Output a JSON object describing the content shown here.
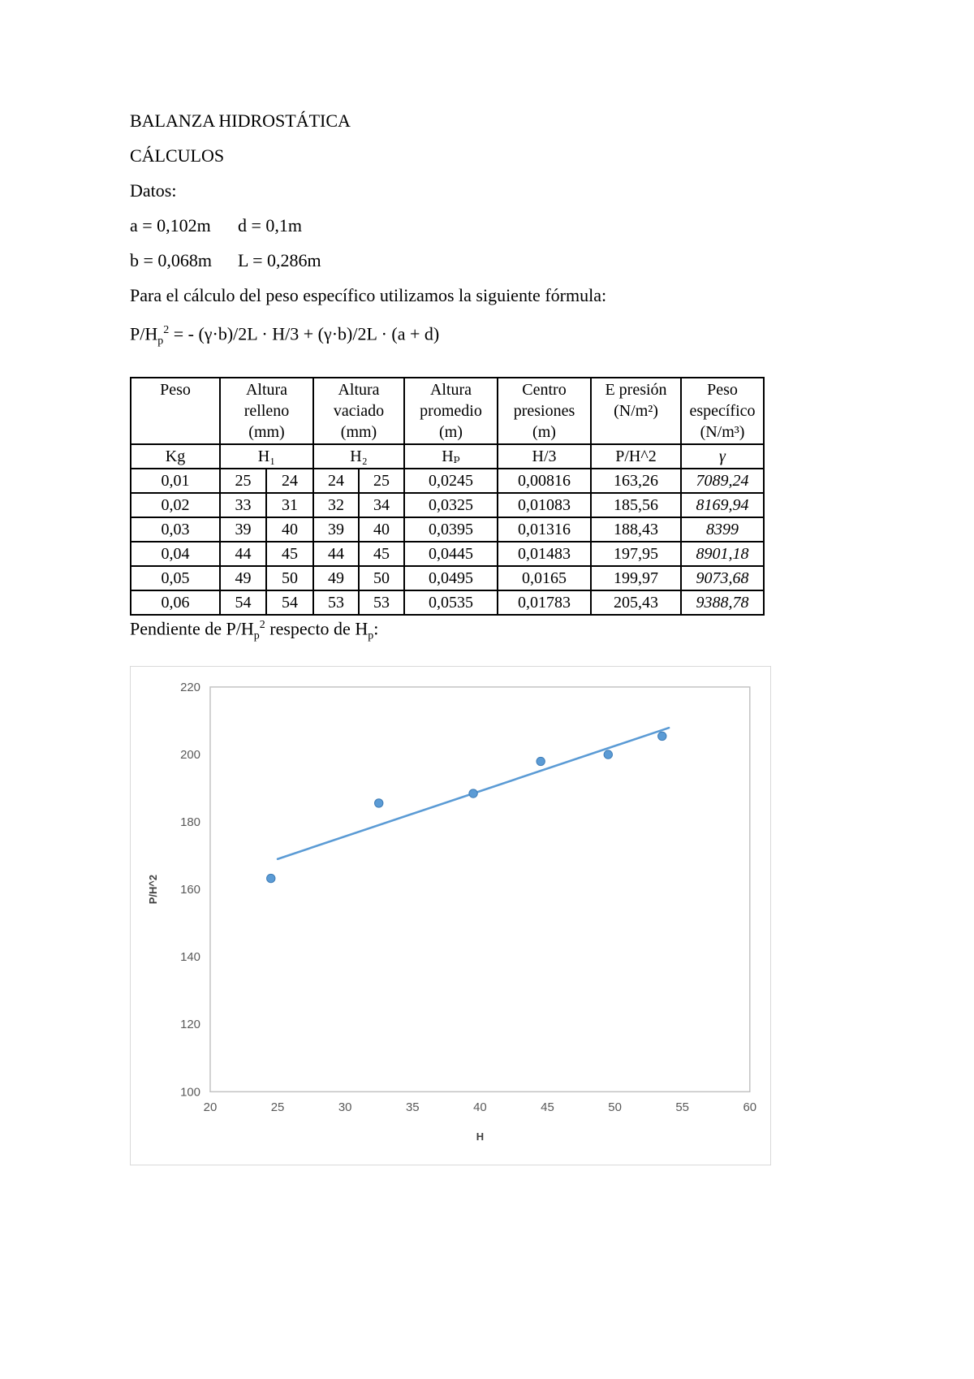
{
  "page": {
    "title": "BALANZA HIDROSTÁTICA",
    "subtitle": "CÁLCULOS",
    "datos_label": "Datos:",
    "datos": [
      {
        "left": "a = 0,102m",
        "right": "d = 0,1m"
      },
      {
        "left": "b = 0,068m",
        "right": "L = 0,286m"
      }
    ],
    "formula_intro": "Para el cálculo del peso específico utilizamos la siguiente fórmula:",
    "formula": {
      "pre": "P/H",
      "sub": "p",
      "sup": "2",
      "rest": " = - (γ·b)/2L · H/3 + (γ·b)/2L · (a + d)"
    },
    "pendiente": {
      "p1": "Pendiente de P/H",
      "sub1": "p",
      "sup1": "2",
      "p2": " respecto de H",
      "sub2": "p",
      "p3": ":"
    }
  },
  "table": {
    "header1": [
      "Peso",
      "Altura\nrelleno\n(mm)",
      "Altura\nvaciado\n(mm)",
      "Altura\npromedio\n(m)",
      "Centro\npresiones\n(m)",
      "E presión\n(N/m²)",
      "Peso\nespecífico\n(N/m³)"
    ],
    "header2": [
      "Kg",
      "H₁",
      "H₂",
      "Hₚ",
      "H/3",
      "P/H^2",
      "γ"
    ],
    "rows": [
      [
        "0,01",
        "25",
        "24",
        "24",
        "25",
        "0,0245",
        "0,00816",
        "163,26",
        "7089,24"
      ],
      [
        "0,02",
        "33",
        "31",
        "32",
        "34",
        "0,0325",
        "0,01083",
        "185,56",
        "8169,94"
      ],
      [
        "0,03",
        "39",
        "40",
        "39",
        "40",
        "0,0395",
        "0,01316",
        "188,43",
        "8399"
      ],
      [
        "0,04",
        "44",
        "45",
        "44",
        "45",
        "0,0445",
        "0,01483",
        "197,95",
        "8901,18"
      ],
      [
        "0,05",
        "49",
        "50",
        "49",
        "50",
        "0,0495",
        "0,0165",
        "199,97",
        "9073,68"
      ],
      [
        "0,06",
        "54",
        "54",
        "53",
        "53",
        "0,0535",
        "0,01783",
        "205,43",
        "9388,78"
      ]
    ]
  },
  "chart_data": {
    "type": "scatter",
    "title": "",
    "xlabel": "H",
    "ylabel": "P/H^2",
    "xlim": [
      20,
      60
    ],
    "ylim": [
      100,
      220
    ],
    "xticks": [
      20,
      25,
      30,
      35,
      40,
      45,
      50,
      55,
      60
    ],
    "yticks": [
      100,
      120,
      140,
      160,
      180,
      200,
      220
    ],
    "grid": false,
    "legend": false,
    "x": [
      24.5,
      32.5,
      39.5,
      44.5,
      49.5,
      53.5
    ],
    "y": [
      163.26,
      185.56,
      188.43,
      197.95,
      199.97,
      205.43
    ],
    "trendline": {
      "x1": 25,
      "y1": 169.0,
      "x2": 54,
      "y2": 207.9
    },
    "marker_color": "#5b9bd5",
    "marker_edge_color": "#3e7cb6",
    "line_color": "#5b9bd5",
    "axis_color": "#bfbfbf",
    "tick_label_color": "#595959",
    "axis_title_color": "#404040"
  }
}
